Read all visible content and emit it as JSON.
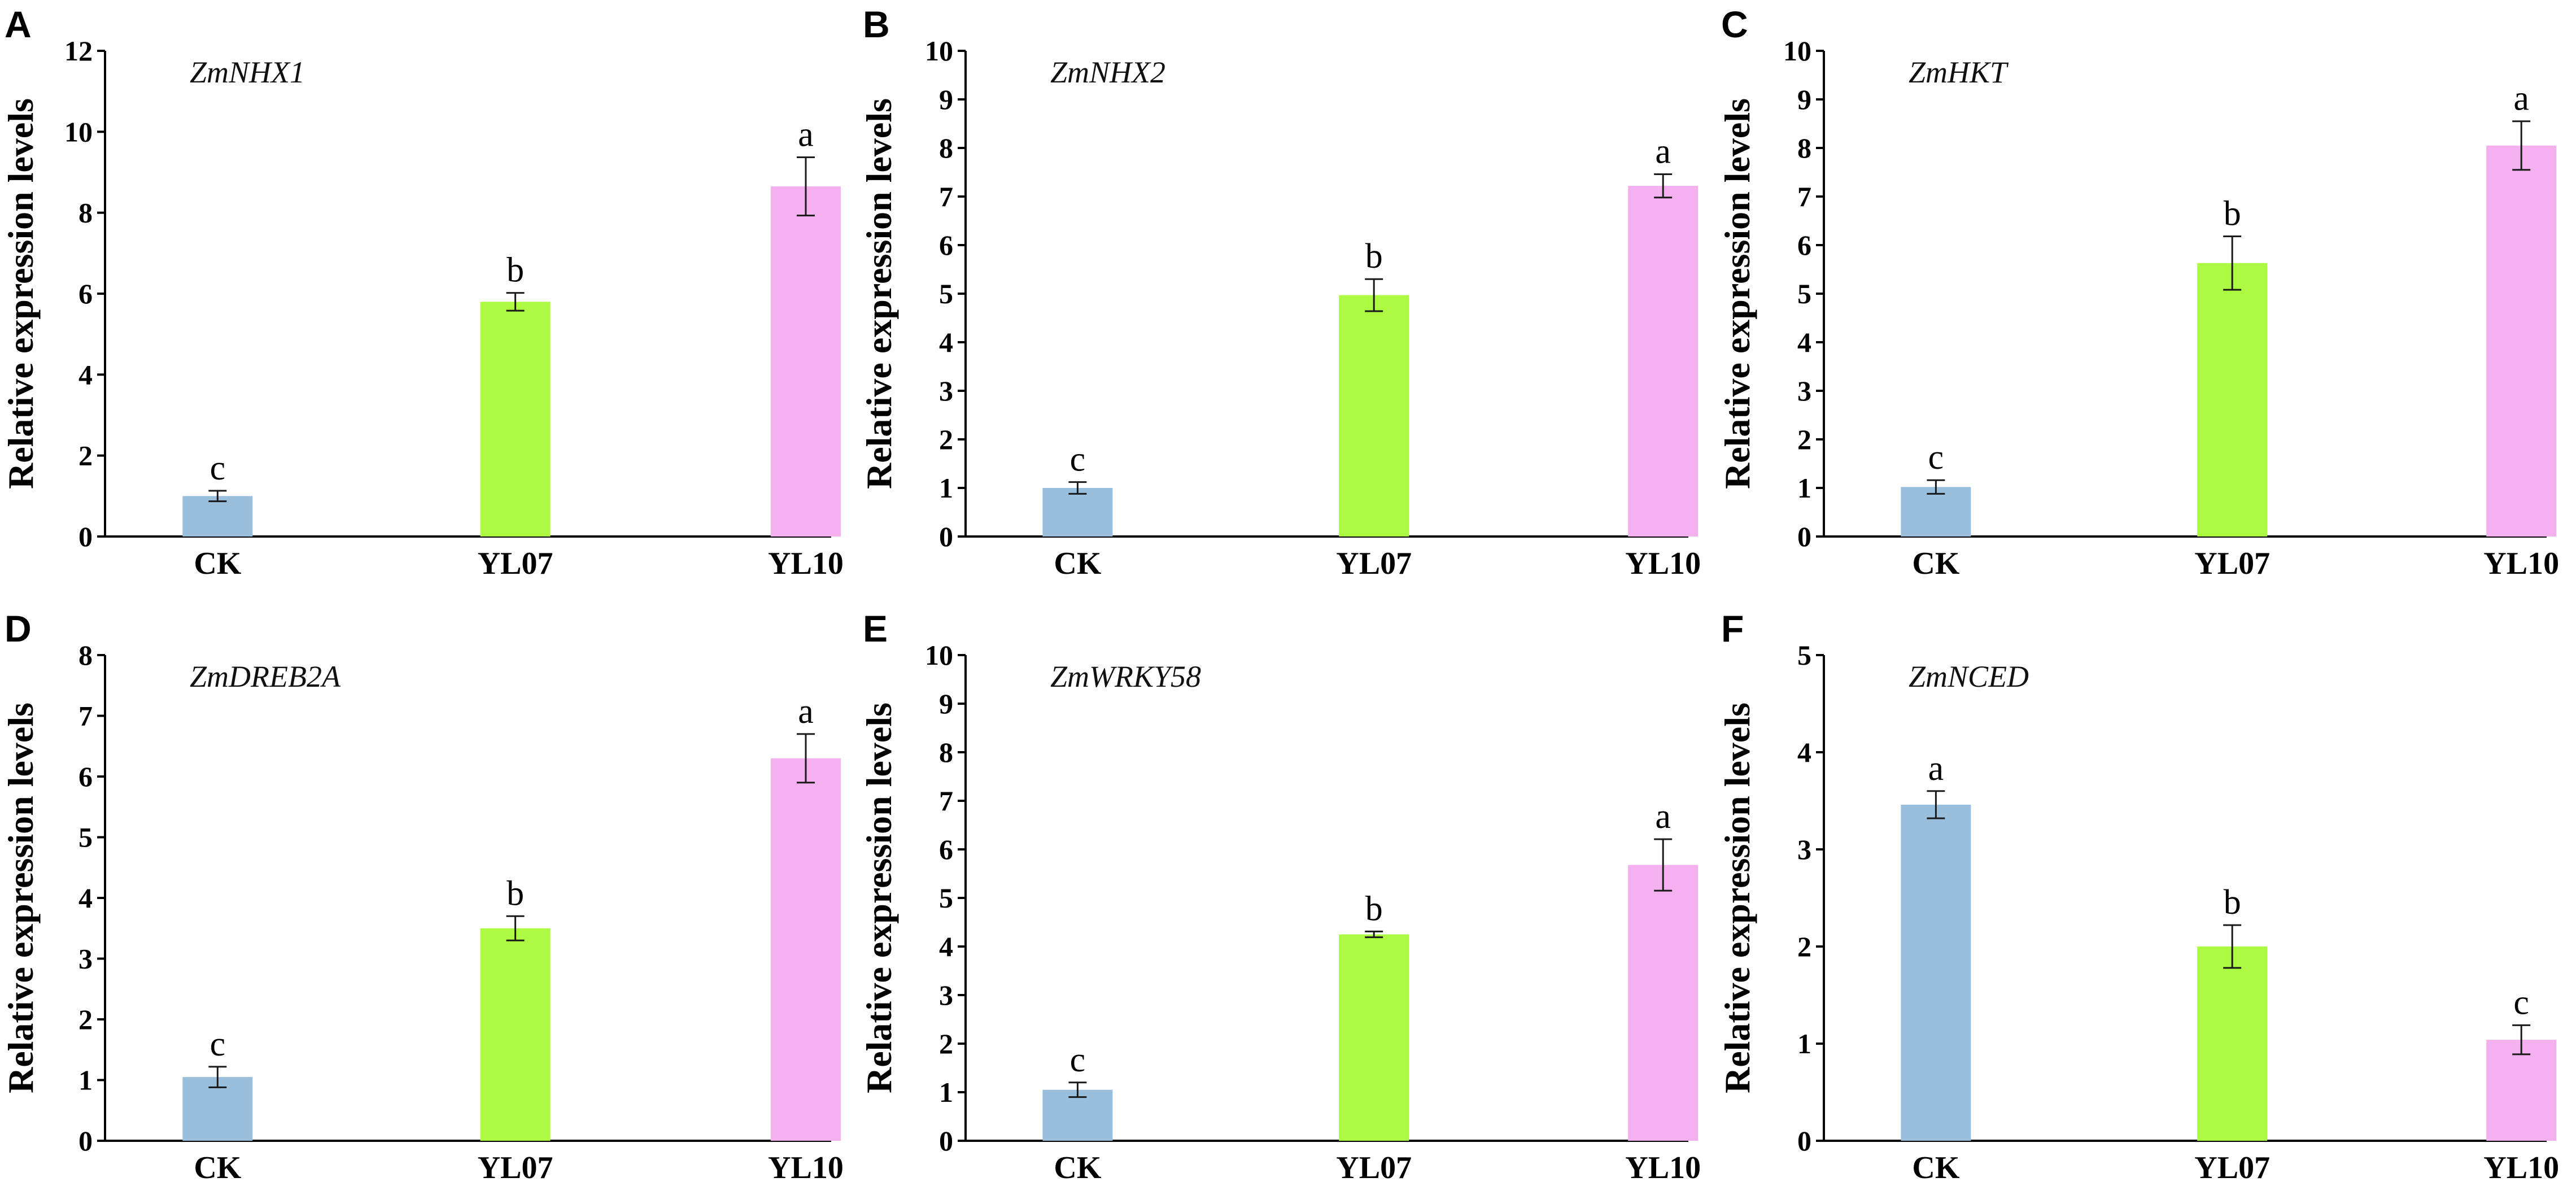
{
  "figure": {
    "description_free": true
  },
  "colors": {
    "CK": "#99bfdc",
    "YL07": "#adfa42",
    "YL10": "#f4b0ef",
    "axis": "#000000"
  },
  "chart_data": [
    {
      "type": "bar",
      "panel": "A",
      "title": "ZmNHX1",
      "ylabel": "Relative expression levels",
      "xlabel": "",
      "categories": [
        "CK",
        "YL07",
        "YL10"
      ],
      "values": [
        1.0,
        5.8,
        8.65
      ],
      "errors": [
        0.13,
        0.22,
        0.72
      ],
      "letters": [
        "c",
        "b",
        "a"
      ],
      "ylim": [
        0,
        12
      ],
      "yticks": [
        0,
        2,
        4,
        6,
        8,
        10,
        12
      ]
    },
    {
      "type": "bar",
      "panel": "B",
      "title": "ZmNHX2",
      "ylabel": "Relative expression levels",
      "xlabel": "",
      "categories": [
        "CK",
        "YL07",
        "YL10"
      ],
      "values": [
        1.0,
        4.97,
        7.22
      ],
      "errors": [
        0.12,
        0.33,
        0.24
      ],
      "letters": [
        "c",
        "b",
        "a"
      ],
      "ylim": [
        0,
        10
      ],
      "yticks": [
        0,
        1,
        2,
        3,
        4,
        5,
        6,
        7,
        8,
        9,
        10
      ]
    },
    {
      "type": "bar",
      "panel": "C",
      "title": "ZmHKT",
      "ylabel": "Relative expression levels",
      "xlabel": "",
      "categories": [
        "CK",
        "YL07",
        "YL10"
      ],
      "values": [
        1.02,
        5.63,
        8.05
      ],
      "errors": [
        0.14,
        0.55,
        0.5
      ],
      "letters": [
        "c",
        "b",
        "a"
      ],
      "ylim": [
        0,
        10
      ],
      "yticks": [
        0,
        1,
        2,
        3,
        4,
        5,
        6,
        7,
        8,
        9,
        10
      ]
    },
    {
      "type": "bar",
      "panel": "D",
      "title": "ZmDREB2A",
      "ylabel": "Relative expression levels",
      "xlabel": "",
      "categories": [
        "CK",
        "YL07",
        "YL10"
      ],
      "values": [
        1.05,
        3.5,
        6.3
      ],
      "errors": [
        0.17,
        0.2,
        0.4
      ],
      "letters": [
        "c",
        "b",
        "a"
      ],
      "ylim": [
        0,
        8
      ],
      "yticks": [
        0,
        1,
        2,
        3,
        4,
        5,
        6,
        7,
        8
      ]
    },
    {
      "type": "bar",
      "panel": "E",
      "title": "ZmWRKY58",
      "ylabel": "Relative expression levels",
      "xlabel": "",
      "categories": [
        "CK",
        "YL07",
        "YL10"
      ],
      "values": [
        1.05,
        4.25,
        5.68
      ],
      "errors": [
        0.15,
        0.06,
        0.53
      ],
      "letters": [
        "c",
        "b",
        "a"
      ],
      "ylim": [
        0,
        10
      ],
      "yticks": [
        0,
        1,
        2,
        3,
        4,
        5,
        6,
        7,
        8,
        9,
        10
      ]
    },
    {
      "type": "bar",
      "panel": "F",
      "title": "ZmNCED",
      "ylabel": "Relative expression levels",
      "xlabel": "",
      "categories": [
        "CK",
        "YL07",
        "YL10"
      ],
      "values": [
        3.46,
        2.0,
        1.04
      ],
      "errors": [
        0.14,
        0.22,
        0.15
      ],
      "letters": [
        "a",
        "b",
        "c"
      ],
      "ylim": [
        0,
        5
      ],
      "yticks": [
        0,
        1,
        2,
        3,
        4,
        5
      ]
    }
  ]
}
